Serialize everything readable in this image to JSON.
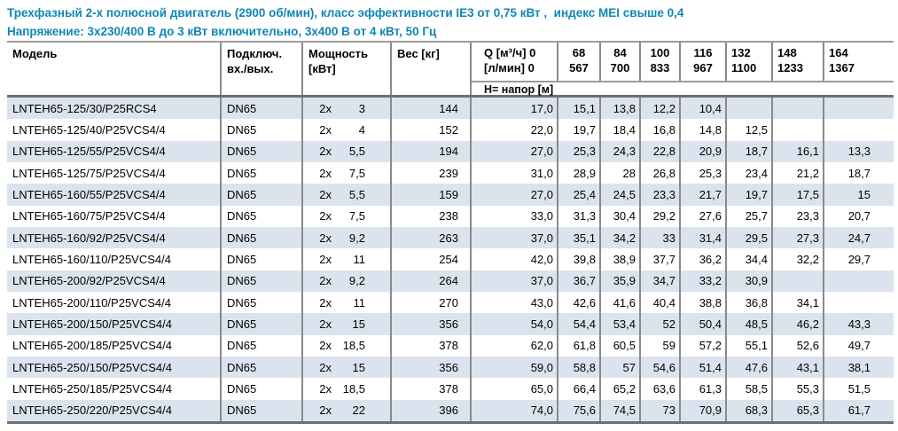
{
  "titles": {
    "line1": "Трехфазный 2-х полюсной двигатель (2900 об/мин), класс эффективности IE3 от 0,75 кВт ,  индекс MEI свыше 0,4",
    "line2": "Напряжение: 3х230/400 В до 3 кВт включительно, 3х400 В от 4 кВт, 50 Гц"
  },
  "colors": {
    "title_blue": "#0f86b6",
    "row_stripe": "#dbe4ee",
    "cell_border": "#8a8a8a",
    "heavy_border": "#6f6f6f"
  },
  "table": {
    "headers": {
      "model": "Модель",
      "connection_l1": "Подключ.",
      "connection_l2": "вх./вых.",
      "power_l1": "Мощность",
      "power_l2": "[кВт]",
      "weight": "Вес [кг]",
      "q_l1": "Q [м³/ч] 0",
      "q_l2": "[л/мин] 0",
      "head_label": "Н= напор [м]"
    },
    "q_columns": [
      {
        "q": "68",
        "lmin": "567"
      },
      {
        "q": "84",
        "lmin": "700"
      },
      {
        "q": "100",
        "lmin": "833"
      },
      {
        "q": "116",
        "lmin": "967"
      },
      {
        "q": "132",
        "lmin": "1100"
      },
      {
        "q": "148",
        "lmin": "1233"
      },
      {
        "q": "164",
        "lmin": "1367"
      }
    ],
    "rows": [
      {
        "model": "LNTEH65-125/30/P25RCS4",
        "connection": "DN65",
        "power_x": "2x",
        "power_val": "3",
        "weight": "144",
        "h": [
          "17,0",
          "15,1",
          "13,8",
          "12,2",
          "10,4",
          "",
          "",
          ""
        ]
      },
      {
        "model": "LNTEH65-125/40/P25VCS4/4",
        "connection": "DN65",
        "power_x": "2x",
        "power_val": "4",
        "weight": "152",
        "h": [
          "22,0",
          "19,7",
          "18,4",
          "16,8",
          "14,8",
          "12,5",
          "",
          ""
        ]
      },
      {
        "model": "LNTEH65-125/55/P25VCS4/4",
        "connection": "DN65",
        "power_x": "2x",
        "power_val": "5,5",
        "weight": "194",
        "h": [
          "27,0",
          "25,3",
          "24,3",
          "22,8",
          "20,9",
          "18,7",
          "16,1",
          "13,3"
        ]
      },
      {
        "model": "LNTEH65-125/75/P25VCS4/4",
        "connection": "DN65",
        "power_x": "2x",
        "power_val": "7,5",
        "weight": "239",
        "h": [
          "31,0",
          "28,9",
          "28",
          "26,8",
          "25,3",
          "23,4",
          "21,2",
          "18,7"
        ]
      },
      {
        "model": "LNTEH65-160/55/P25VCS4/4",
        "connection": "DN65",
        "power_x": "2x",
        "power_val": "5,5",
        "weight": "159",
        "h": [
          "27,0",
          "25,4",
          "24,5",
          "23,3",
          "21,7",
          "19,7",
          "17,5",
          "15"
        ]
      },
      {
        "model": "LNTEH65-160/75/P25VCS4/4",
        "connection": "DN65",
        "power_x": "2x",
        "power_val": "7,5",
        "weight": "238",
        "h": [
          "33,0",
          "31,3",
          "30,4",
          "29,2",
          "27,6",
          "25,7",
          "23,3",
          "20,7"
        ]
      },
      {
        "model": "LNTEH65-160/92/P25VCS4/4",
        "connection": "DN65",
        "power_x": "2x",
        "power_val": "9,2",
        "weight": "263",
        "h": [
          "37,0",
          "35,1",
          "34,2",
          "33",
          "31,4",
          "29,5",
          "27,3",
          "24,7"
        ]
      },
      {
        "model": "LNTEH65-160/110/P25VCS4/4",
        "connection": "DN65",
        "power_x": "2x",
        "power_val": "11",
        "weight": "254",
        "h": [
          "42,0",
          "39,8",
          "38,9",
          "37,7",
          "36,2",
          "34,4",
          "32,2",
          "29,7"
        ]
      },
      {
        "model": "LNTEH65-200/92/P25VCS4/4",
        "connection": "DN65",
        "power_x": "2x",
        "power_val": "9,2",
        "weight": "264",
        "h": [
          "37,0",
          "36,7",
          "35,9",
          "34,7",
          "33,2",
          "30,9",
          "",
          ""
        ]
      },
      {
        "model": "LNTEH65-200/110/P25VCS4/4",
        "connection": "DN65",
        "power_x": "2x",
        "power_val": "11",
        "weight": "270",
        "h": [
          "43,0",
          "42,6",
          "41,6",
          "40,4",
          "38,8",
          "36,8",
          "34,1",
          ""
        ]
      },
      {
        "model": "LNTEH65-200/150/P25VCS4/4",
        "connection": "DN65",
        "power_x": "2x",
        "power_val": "15",
        "weight": "356",
        "h": [
          "54,0",
          "54,4",
          "53,4",
          "52",
          "50,4",
          "48,5",
          "46,2",
          "43,3"
        ]
      },
      {
        "model": "LNTEH65-200/185/P25VCS4/4",
        "connection": "DN65",
        "power_x": "2x",
        "power_val": "18,5",
        "weight": "378",
        "h": [
          "62,0",
          "61,8",
          "60,5",
          "59",
          "57,2",
          "55,1",
          "52,6",
          "49,7"
        ]
      },
      {
        "model": "LNTEH65-250/150/P25VCS4/4",
        "connection": "DN65",
        "power_x": "2x",
        "power_val": "15",
        "weight": "356",
        "h": [
          "59,0",
          "58,8",
          "57",
          "54,6",
          "51,4",
          "47,6",
          "43,1",
          "38,1"
        ]
      },
      {
        "model": "LNTEH65-250/185/P25VCS4/4",
        "connection": "DN65",
        "power_x": "2x",
        "power_val": "18,5",
        "weight": "378",
        "h": [
          "65,0",
          "66,4",
          "65,2",
          "63,6",
          "61,3",
          "58,5",
          "55,3",
          "51,5"
        ]
      },
      {
        "model": "LNTEH65-250/220/P25VCS4/4",
        "connection": "DN65",
        "power_x": "2x",
        "power_val": "22",
        "weight": "396",
        "h": [
          "74,0",
          "75,6",
          "74,5",
          "73",
          "70,9",
          "68,3",
          "65,3",
          "61,7"
        ]
      }
    ]
  }
}
